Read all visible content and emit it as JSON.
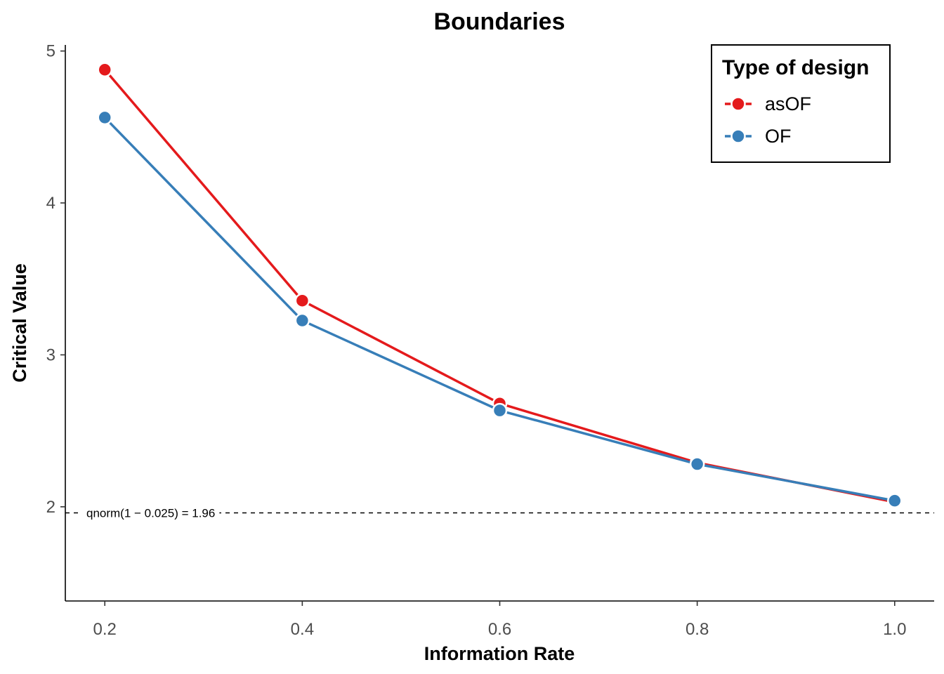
{
  "chart_data": {
    "type": "line",
    "title": "Boundaries",
    "xlabel": "Information Rate",
    "ylabel": "Critical Value",
    "x": [
      0.2,
      0.4,
      0.6,
      0.8,
      1.0
    ],
    "xlim": [
      0.16,
      1.04
    ],
    "ylim": [
      1.38,
      5.04
    ],
    "x_ticks": [
      "0.2",
      "0.4",
      "0.6",
      "0.8",
      "1.0"
    ],
    "y_ticks": [
      "2",
      "3",
      "4",
      "5"
    ],
    "grid": false,
    "legend": {
      "title": "Type of design",
      "position": "top-right"
    },
    "series": [
      {
        "name": "asOF",
        "color": "#e41a1c",
        "values": [
          4.877,
          3.357,
          2.68,
          2.29,
          2.031
        ]
      },
      {
        "name": "OF",
        "color": "#377eb8",
        "values": [
          4.562,
          3.226,
          2.634,
          2.281,
          2.04
        ]
      }
    ],
    "reference_line": {
      "y": 1.96,
      "style": "dashed",
      "label": "qnorm(1 − 0.025) = 1.96"
    }
  }
}
